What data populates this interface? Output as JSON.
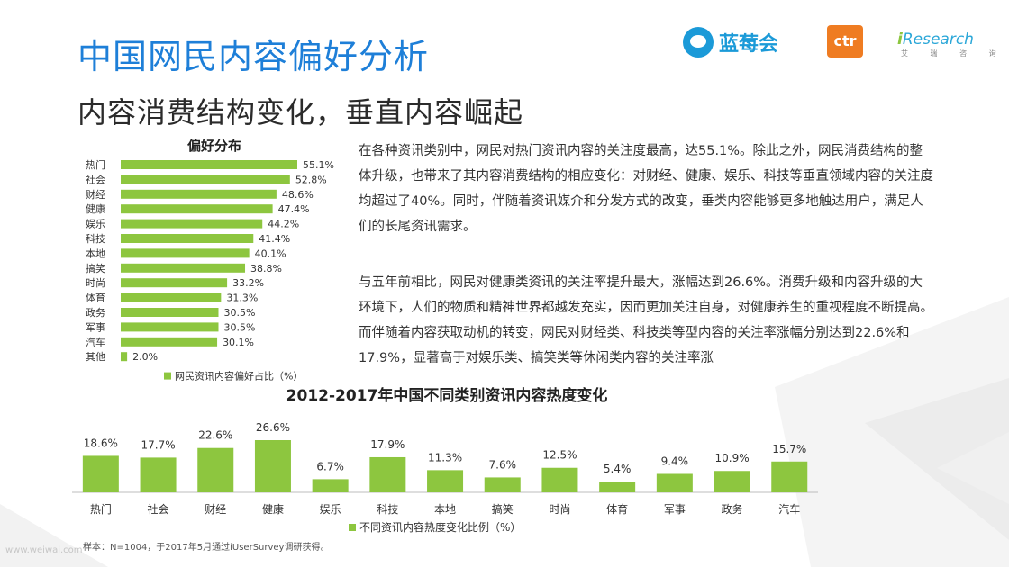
{
  "header": {
    "title": "中国网民内容偏好分析",
    "subtitle": "内容消费结构变化，垂直内容崛起"
  },
  "logos": {
    "blue_brand": "蓝莓会",
    "ctr": "ctr",
    "iresearch_i": "i",
    "iresearch": "Research",
    "iresearch_cn": "艾 瑞 咨 询"
  },
  "paragraphs": {
    "p1": "在各种资讯类别中，网民对热门资讯内容的关注度最高，达55.1%。除此之外，网民消费结构的整体升级，也带来了其内容消费结构的相应变化：对财经、健康、娱乐、科技等垂直领域内容的关注度均超过了40%。同时，伴随着资讯媒介和分发方式的改变，垂类内容能够更多地触达用户，满足人们的长尾资讯需求。",
    "p2": "与五年前相比，网民对健康类资讯的关注率提升最大，涨幅达到26.6%。消费升级和内容升级的大环境下，人们的物质和精神世界都越发充实，因而更加关注自身，对健康养生的重视程度不断提高。而伴随着内容获取动机的转变，网民对财经类、科技类等型内容的关注率涨幅分别达到22.6%和17.9%，显著高于对娱乐类、搞笑类等休闲类内容的关注率涨"
  },
  "chart_data": [
    {
      "type": "bar",
      "orientation": "horizontal",
      "title": "偏好分布",
      "categories": [
        "热门",
        "社会",
        "财经",
        "健康",
        "娱乐",
        "科技",
        "本地",
        "搞笑",
        "时尚",
        "体育",
        "政务",
        "军事",
        "汽车",
        "其他"
      ],
      "series": [
        {
          "name": "网民资讯内容偏好占比（%）",
          "values": [
            55.1,
            52.8,
            48.6,
            47.4,
            44.2,
            41.4,
            40.1,
            38.8,
            33.2,
            31.3,
            30.5,
            30.5,
            30.1,
            2.0
          ],
          "color": "#8dc63f"
        }
      ],
      "value_suffix": "%",
      "xlim": [
        0,
        60
      ],
      "legend": "bottom",
      "grid": false
    },
    {
      "type": "bar",
      "orientation": "vertical",
      "title": "2012-2017年中国不同类别资讯内容热度变化",
      "categories": [
        "热门",
        "社会",
        "财经",
        "健康",
        "娱乐",
        "科技",
        "本地",
        "搞笑",
        "时尚",
        "体育",
        "军事",
        "政务",
        "汽车"
      ],
      "series": [
        {
          "name": "不同资讯内容热度变化比例（%）",
          "values": [
            18.6,
            17.7,
            22.6,
            26.6,
            6.7,
            17.9,
            11.3,
            7.6,
            12.5,
            5.4,
            9.4,
            10.9,
            15.7
          ],
          "color": "#8dc63f"
        }
      ],
      "value_suffix": "%",
      "ylim": [
        0,
        30
      ],
      "legend": "bottom",
      "grid": false
    }
  ],
  "footnote": "样本：N=1004，于2017年5月通过iUserSurvey调研获得。",
  "watermark": "www.weiwai.com"
}
